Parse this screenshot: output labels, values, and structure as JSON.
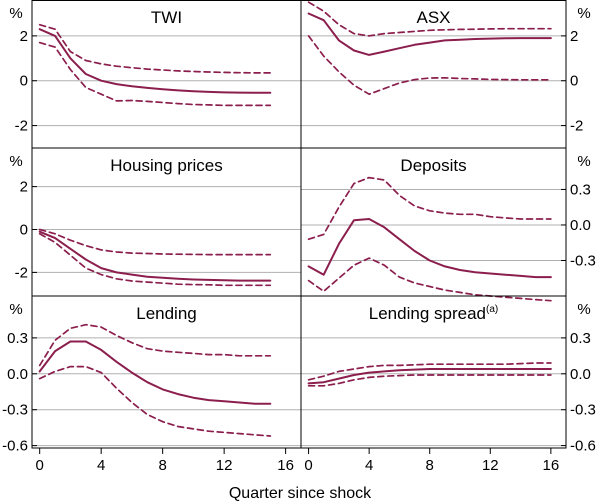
{
  "xaxis": {
    "label": "Quarter since shock",
    "ticks": [
      0,
      4,
      8,
      12,
      16
    ],
    "xlim": [
      -0.5,
      17
    ]
  },
  "unit_symbol": "%",
  "colors": {
    "line": "#8b1e4d",
    "grid": "#b0b0b0",
    "frame": "#000000"
  },
  "rows": [
    {
      "ylim": [
        -3,
        3.6
      ],
      "left_ticks": [
        {
          "value": 2,
          "label": "2"
        },
        {
          "value": 0,
          "label": "0"
        },
        {
          "value": -2,
          "label": "-2"
        }
      ],
      "right_ticks": [
        {
          "value": 2,
          "label": "2"
        },
        {
          "value": 0,
          "label": "0"
        },
        {
          "value": -2,
          "label": "-2"
        }
      ]
    },
    {
      "left_ylim": [
        -3.1,
        3.8
      ],
      "right_ylim": [
        -0.6,
        0.65
      ],
      "left_ticks": [
        {
          "value": 2,
          "label": "2"
        },
        {
          "value": 0,
          "label": "0"
        },
        {
          "value": -2,
          "label": "-2"
        }
      ],
      "right_ticks": [
        {
          "value": 0.3,
          "label": "0.3"
        },
        {
          "value": 0,
          "label": "0.0"
        },
        {
          "value": -0.3,
          "label": "-0.3"
        }
      ]
    },
    {
      "ylim": [
        -0.62,
        0.65
      ],
      "left_ticks": [
        {
          "value": 0.3,
          "label": "0.3"
        },
        {
          "value": 0,
          "label": "0.0"
        },
        {
          "value": -0.3,
          "label": "-0.3"
        },
        {
          "value": -0.6,
          "label": "-0.6"
        }
      ],
      "right_ticks": [
        {
          "value": 0.3,
          "label": "0.3"
        },
        {
          "value": 0,
          "label": "0.0"
        },
        {
          "value": -0.3,
          "label": "-0.3"
        },
        {
          "value": -0.6,
          "label": "-0.6"
        }
      ]
    }
  ],
  "chart_data": [
    {
      "type": "line",
      "title": "TWI",
      "title_sup": "",
      "row": 0,
      "col": 0,
      "x": [
        0,
        1,
        2,
        3,
        4,
        5,
        6,
        7,
        8,
        9,
        10,
        11,
        12,
        13,
        14,
        15
      ],
      "series": [
        {
          "name": "Estimate",
          "style": "solid",
          "values": [
            2.3,
            2.0,
            1.0,
            0.3,
            0.0,
            -0.15,
            -0.25,
            -0.32,
            -0.38,
            -0.43,
            -0.47,
            -0.5,
            -0.52,
            -0.53,
            -0.54,
            -0.54
          ]
        },
        {
          "name": "Upper band",
          "style": "dashed",
          "values": [
            2.5,
            2.3,
            1.3,
            0.9,
            0.75,
            0.65,
            0.58,
            0.52,
            0.48,
            0.44,
            0.41,
            0.39,
            0.37,
            0.36,
            0.35,
            0.35
          ]
        },
        {
          "name": "Lower band",
          "style": "dashed",
          "values": [
            1.7,
            1.5,
            0.5,
            -0.3,
            -0.6,
            -0.9,
            -0.88,
            -0.92,
            -0.97,
            -1.02,
            -1.06,
            -1.08,
            -1.1,
            -1.1,
            -1.1,
            -1.1
          ]
        }
      ]
    },
    {
      "type": "line",
      "title": "ASX",
      "title_sup": "",
      "row": 0,
      "col": 1,
      "x": [
        0,
        1,
        2,
        3,
        4,
        5,
        6,
        7,
        8,
        9,
        10,
        11,
        12,
        13,
        14,
        15,
        16
      ],
      "series": [
        {
          "name": "Estimate",
          "style": "solid",
          "values": [
            3.0,
            2.7,
            1.8,
            1.35,
            1.15,
            1.3,
            1.45,
            1.6,
            1.7,
            1.8,
            1.83,
            1.86,
            1.88,
            1.89,
            1.9,
            1.9,
            1.9
          ]
        },
        {
          "name": "Upper band",
          "style": "dashed",
          "values": [
            3.5,
            3.1,
            2.5,
            2.1,
            2.0,
            2.1,
            2.15,
            2.2,
            2.25,
            2.27,
            2.29,
            2.3,
            2.31,
            2.32,
            2.32,
            2.32,
            2.32
          ]
        },
        {
          "name": "Lower band",
          "style": "dashed",
          "values": [
            2.0,
            1.1,
            0.4,
            -0.2,
            -0.6,
            -0.35,
            -0.1,
            0.05,
            0.12,
            0.13,
            0.1,
            0.08,
            0.06,
            0.05,
            0.04,
            0.04,
            0.04
          ]
        }
      ]
    },
    {
      "type": "line",
      "title": "Housing prices",
      "title_sup": "",
      "row": 1,
      "col": 0,
      "x": [
        0,
        1,
        2,
        3,
        4,
        5,
        6,
        7,
        8,
        9,
        10,
        11,
        12,
        13,
        14,
        15
      ],
      "series": [
        {
          "name": "Estimate",
          "style": "solid",
          "values": [
            -0.1,
            -0.4,
            -0.9,
            -1.4,
            -1.8,
            -2.0,
            -2.1,
            -2.2,
            -2.25,
            -2.3,
            -2.33,
            -2.35,
            -2.37,
            -2.38,
            -2.38,
            -2.38
          ]
        },
        {
          "name": "Upper band",
          "style": "dashed",
          "values": [
            0.0,
            -0.2,
            -0.5,
            -0.75,
            -0.95,
            -1.05,
            -1.1,
            -1.12,
            -1.14,
            -1.15,
            -1.16,
            -1.17,
            -1.17,
            -1.17,
            -1.17,
            -1.17
          ]
        },
        {
          "name": "Lower band",
          "style": "dashed",
          "values": [
            -0.2,
            -0.6,
            -1.2,
            -1.8,
            -2.1,
            -2.3,
            -2.4,
            -2.45,
            -2.5,
            -2.55,
            -2.57,
            -2.58,
            -2.6,
            -2.6,
            -2.6,
            -2.6
          ]
        }
      ]
    },
    {
      "type": "line",
      "title": "Deposits",
      "title_sup": "",
      "row": 1,
      "col": 1,
      "x": [
        0,
        1,
        2,
        3,
        4,
        5,
        6,
        7,
        8,
        9,
        10,
        11,
        12,
        13,
        14,
        15,
        16
      ],
      "series": [
        {
          "name": "Estimate",
          "style": "solid",
          "values": [
            -0.35,
            -0.42,
            -0.16,
            0.04,
            0.05,
            -0.02,
            -0.12,
            -0.22,
            -0.3,
            -0.35,
            -0.38,
            -0.4,
            -0.41,
            -0.42,
            -0.43,
            -0.44,
            -0.44
          ]
        },
        {
          "name": "Upper band",
          "style": "dashed",
          "values": [
            -0.12,
            -0.08,
            0.15,
            0.35,
            0.4,
            0.38,
            0.25,
            0.16,
            0.12,
            0.1,
            0.09,
            0.09,
            0.07,
            0.06,
            0.05,
            0.05,
            0.05
          ]
        },
        {
          "name": "Lower band",
          "style": "dashed",
          "values": [
            -0.47,
            -0.56,
            -0.45,
            -0.34,
            -0.28,
            -0.34,
            -0.44,
            -0.49,
            -0.52,
            -0.55,
            -0.57,
            -0.59,
            -0.6,
            -0.61,
            -0.62,
            -0.63,
            -0.64
          ]
        }
      ]
    },
    {
      "type": "line",
      "title": "Lending",
      "title_sup": "",
      "row": 2,
      "col": 0,
      "x": [
        0,
        1,
        2,
        3,
        4,
        5,
        6,
        7,
        8,
        9,
        10,
        11,
        12,
        13,
        14,
        15
      ],
      "series": [
        {
          "name": "Estimate",
          "style": "solid",
          "values": [
            0.02,
            0.19,
            0.27,
            0.27,
            0.2,
            0.1,
            0.01,
            -0.07,
            -0.13,
            -0.17,
            -0.2,
            -0.22,
            -0.23,
            -0.24,
            -0.25,
            -0.25
          ]
        },
        {
          "name": "Upper band",
          "style": "dashed",
          "values": [
            0.07,
            0.28,
            0.38,
            0.41,
            0.39,
            0.32,
            0.26,
            0.21,
            0.19,
            0.18,
            0.17,
            0.16,
            0.16,
            0.15,
            0.15,
            0.15
          ]
        },
        {
          "name": "Lower band",
          "style": "dashed",
          "values": [
            -0.04,
            0.02,
            0.06,
            0.06,
            0.01,
            -0.12,
            -0.24,
            -0.34,
            -0.4,
            -0.44,
            -0.46,
            -0.48,
            -0.49,
            -0.5,
            -0.51,
            -0.52
          ]
        }
      ]
    },
    {
      "type": "line",
      "title": "Lending spread",
      "title_sup": "(a)",
      "row": 2,
      "col": 1,
      "x": [
        0,
        1,
        2,
        3,
        4,
        5,
        6,
        7,
        8,
        9,
        10,
        11,
        12,
        13,
        14,
        15,
        16
      ],
      "series": [
        {
          "name": "Estimate",
          "style": "solid",
          "values": [
            -0.08,
            -0.07,
            -0.04,
            -0.01,
            0.01,
            0.02,
            0.03,
            0.035,
            0.04,
            0.04,
            0.04,
            0.04,
            0.04,
            0.04,
            0.04,
            0.04,
            0.04
          ]
        },
        {
          "name": "Upper band",
          "style": "dashed",
          "values": [
            -0.05,
            -0.02,
            0.02,
            0.04,
            0.06,
            0.07,
            0.07,
            0.075,
            0.08,
            0.08,
            0.08,
            0.08,
            0.08,
            0.08,
            0.085,
            0.09,
            0.09
          ]
        },
        {
          "name": "Lower band",
          "style": "dashed",
          "values": [
            -0.1,
            -0.1,
            -0.08,
            -0.05,
            -0.03,
            -0.02,
            -0.015,
            -0.01,
            -0.01,
            -0.01,
            -0.01,
            -0.01,
            -0.01,
            -0.01,
            -0.01,
            -0.01,
            -0.01
          ]
        }
      ]
    }
  ]
}
